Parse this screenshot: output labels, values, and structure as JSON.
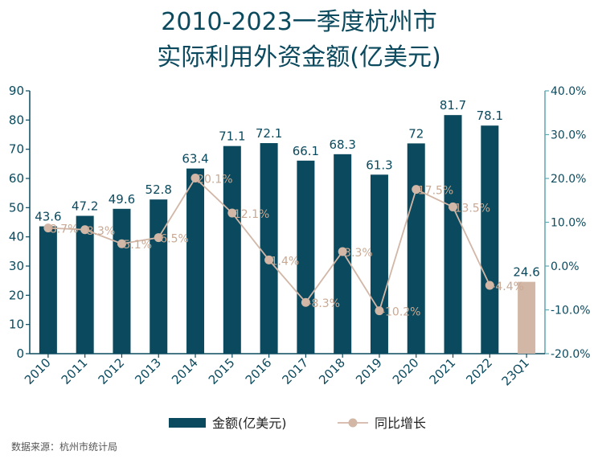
{
  "chart_data": {
    "type": "bar+line",
    "title_line1": "2010-2023一季度杭州市",
    "title_line2": "实际利用外资金额(亿美元)",
    "categories": [
      "2010",
      "2011",
      "2012",
      "2013",
      "2014",
      "2015",
      "2016",
      "2017",
      "2018",
      "2019",
      "2020",
      "2021",
      "2022",
      "23Q1"
    ],
    "series": [
      {
        "name": "金额(亿美元)",
        "type": "bar",
        "axis": "left",
        "values": [
          43.6,
          47.2,
          49.6,
          52.8,
          63.4,
          71.1,
          72.1,
          66.1,
          68.3,
          61.3,
          72,
          81.7,
          78.1,
          24.6
        ],
        "labels": [
          "43.6",
          "47.2",
          "49.6",
          "52.8",
          "63.4",
          "71.1",
          "72.1",
          "66.1",
          "68.3",
          "61.3",
          "72",
          "81.7",
          "78.1",
          "24.6"
        ],
        "color": "#0b4a5e",
        "highlight_color": "#d2b6a6"
      },
      {
        "name": "同比增长",
        "type": "line",
        "axis": "right",
        "values": [
          8.7,
          8.3,
          5.1,
          6.5,
          20.1,
          12.1,
          1.4,
          -8.3,
          3.3,
          -10.2,
          17.5,
          13.5,
          -4.4,
          null
        ],
        "labels": [
          "8.7%",
          "8.3%",
          "5.1%",
          "6.5%",
          "20.1%",
          "12.1%",
          "1.4%",
          "-8.3%",
          "3.3%",
          "-10.2%",
          "17.5%",
          "13.5%",
          "-4.4%",
          ""
        ],
        "color": "#d2b6a6"
      }
    ],
    "y_left": {
      "min": 0,
      "max": 90,
      "ticks": [
        "0",
        "10",
        "20",
        "30",
        "40",
        "50",
        "60",
        "70",
        "80",
        "90"
      ]
    },
    "y_right": {
      "min": -20,
      "max": 40,
      "ticks": [
        "-20.0%",
        "-10.0%",
        "0.0%",
        "10.0%",
        "20.0%",
        "30.0%",
        "40.0%"
      ]
    },
    "legend_position": "bottom",
    "source": "数据来源：杭州市统计局"
  },
  "colors": {
    "axis_left": "#0b4a5e",
    "axis_right": "#5fa7b1",
    "label_line": "#c9a994"
  }
}
